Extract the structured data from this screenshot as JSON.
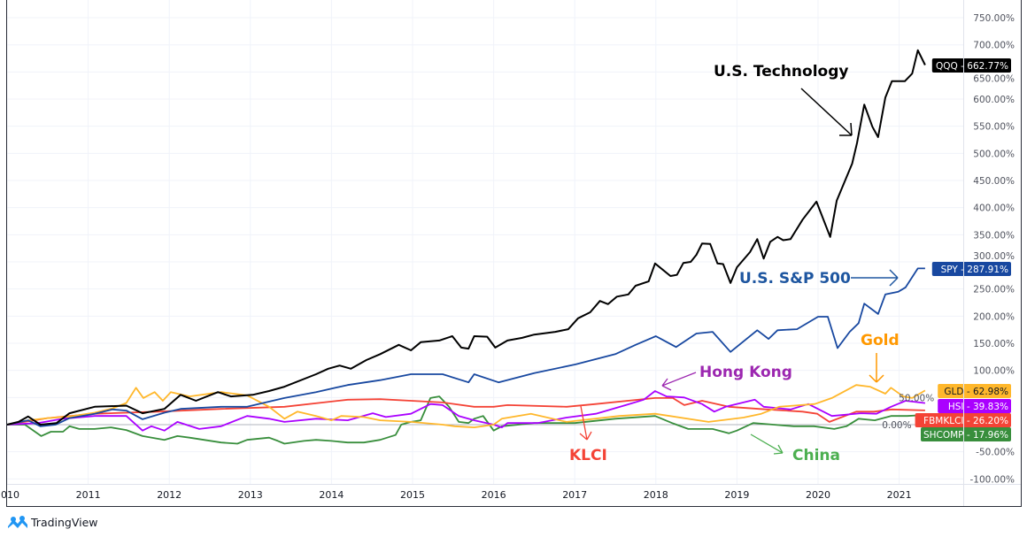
{
  "chart_data": {
    "type": "line",
    "title": "",
    "xlabel": "",
    "ylabel": "",
    "xlim": [
      2010.0,
      2021.8
    ],
    "ylim": [
      -110,
      780
    ],
    "y_ticks": [
      "750.00%",
      "700.00%",
      "650.00%",
      "600.00%",
      "550.00%",
      "500.00%",
      "450.00%",
      "400.00%",
      "350.00%",
      "300.00%",
      "250.00%",
      "200.00%",
      "150.00%",
      "100.00%",
      "50.00%",
      "0.00%",
      "-50.00%",
      "-100.00%"
    ],
    "y_tick_values": [
      750,
      700,
      650,
      600,
      550,
      500,
      450,
      400,
      350,
      300,
      250,
      200,
      150,
      100,
      50,
      0,
      -50,
      -100
    ],
    "x_ticks": [
      "2010",
      "2011",
      "2012",
      "2013",
      "2014",
      "2015",
      "2016",
      "2017",
      "2018",
      "2019",
      "2020",
      "2021"
    ],
    "x_tick_values": [
      2010,
      2011,
      2012,
      2013,
      2014,
      2015,
      2016,
      2017,
      2018,
      2019,
      2020,
      2021
    ],
    "grid": true,
    "baseline": 0,
    "series": [
      {
        "name": "QQQ",
        "tag": "QQQ - 662.77%",
        "color": "#000000",
        "tag_text_color": "#ffffff",
        "x": [
          2010.0,
          2010.14,
          2010.26,
          2010.41,
          2010.61,
          2010.77,
          2011.08,
          2011.47,
          2011.67,
          2011.94,
          2012.14,
          2012.33,
          2012.6,
          2012.76,
          2013.03,
          2013.23,
          2013.42,
          2013.81,
          2013.96,
          2014.1,
          2014.24,
          2014.43,
          2014.6,
          2014.83,
          2014.98,
          2015.1,
          2015.33,
          2015.49,
          2015.6,
          2015.69,
          2015.76,
          2015.92,
          2016.02,
          2016.17,
          2016.35,
          2016.5,
          2016.76,
          2016.92,
          2017.04,
          2017.19,
          2017.31,
          2017.41,
          2017.52,
          2017.66,
          2017.75,
          2017.91,
          2017.99,
          2018.18,
          2018.26,
          2018.34,
          2018.43,
          2018.5,
          2018.57,
          2018.67,
          2018.76,
          2018.83,
          2018.92,
          2019.0,
          2019.16,
          2019.25,
          2019.33,
          2019.41,
          2019.5,
          2019.57,
          2019.66,
          2019.81,
          2019.98,
          2020.15,
          2020.23,
          2020.42,
          2020.48,
          2020.57,
          2020.67,
          2020.74,
          2020.83,
          2020.91,
          2021.07,
          2021.16,
          2021.23,
          2021.32
        ],
        "y": [
          0,
          5,
          15,
          0,
          3,
          21,
          33,
          35,
          21,
          29,
          55,
          44,
          60,
          52,
          55,
          62,
          70,
          93,
          103,
          109,
          103,
          119,
          130,
          147,
          137,
          152,
          155,
          163,
          142,
          140,
          163,
          162,
          142,
          155,
          160,
          166,
          171,
          176,
          196,
          207,
          228,
          222,
          236,
          240,
          256,
          264,
          297,
          274,
          276,
          298,
          300,
          313,
          334,
          333,
          297,
          296,
          261,
          290,
          318,
          342,
          306,
          337,
          346,
          340,
          342,
          378,
          411,
          346,
          413,
          481,
          519,
          590,
          549,
          530,
          603,
          633,
          633,
          647,
          690,
          662.77
        ]
      },
      {
        "name": "SPY",
        "tag": "SPY - 287.91%",
        "color": "#1848a0",
        "tag_text_color": "#ffffff",
        "x": [
          2010.0,
          2010.26,
          2010.41,
          2010.6,
          2010.77,
          2011.08,
          2011.3,
          2011.47,
          2011.67,
          2011.94,
          2012.14,
          2012.64,
          2012.96,
          2013.42,
          2013.81,
          2014.2,
          2014.6,
          2014.98,
          2015.37,
          2015.69,
          2015.76,
          2016.06,
          2016.5,
          2017.01,
          2017.5,
          2017.75,
          2018.0,
          2018.25,
          2018.5,
          2018.7,
          2018.92,
          2019.25,
          2019.39,
          2019.5,
          2019.74,
          2020.0,
          2020.12,
          2020.24,
          2020.39,
          2020.5,
          2020.57,
          2020.74,
          2020.83,
          2020.99,
          2021.08,
          2021.23,
          2021.32
        ],
        "y": [
          0,
          8,
          -3,
          0,
          12,
          20,
          28,
          26,
          10,
          22,
          29,
          33,
          33,
          49,
          60,
          73,
          82,
          93,
          93,
          78,
          93,
          78,
          95,
          111,
          130,
          147,
          163,
          143,
          168,
          171,
          134,
          174,
          158,
          174,
          176,
          199,
          199,
          141,
          171,
          187,
          223,
          204,
          240,
          245,
          253,
          288,
          287.91
        ]
      },
      {
        "name": "GLD",
        "tag": "GLD - 62.98%",
        "color": "#ffb72b",
        "tag_text_color": "#131722",
        "x": [
          2010.0,
          2010.26,
          2010.5,
          2010.77,
          2011.08,
          2011.3,
          2011.47,
          2011.59,
          2011.68,
          2011.82,
          2011.92,
          2012.02,
          2012.25,
          2012.64,
          2012.96,
          2013.23,
          2013.42,
          2013.58,
          2013.81,
          2014.0,
          2014.12,
          2014.4,
          2014.6,
          2014.98,
          2015.37,
          2015.52,
          2015.76,
          2016.0,
          2016.1,
          2016.46,
          2016.9,
          2017.55,
          2017.99,
          2018.65,
          2019.08,
          2019.3,
          2019.52,
          2019.96,
          2020.17,
          2020.47,
          2020.64,
          2020.83,
          2020.9,
          2021.05,
          2021.16,
          2021.32
        ],
        "y": [
          0,
          8,
          12,
          15,
          22,
          30,
          40,
          68,
          49,
          60,
          44,
          60,
          52,
          60,
          54,
          33,
          11,
          24,
          16,
          8,
          16,
          14,
          8,
          5,
          0,
          -3,
          -5,
          0,
          11,
          20,
          5,
          16,
          20,
          5,
          13,
          20,
          33,
          38,
          49,
          73,
          70,
          57,
          68,
          52,
          49,
          62.98
        ]
      },
      {
        "name": "HSI",
        "tag": "HSI - 39.83%",
        "color": "#aa00ff",
        "tag_text_color": "#ffffff",
        "x": [
          2010.0,
          2010.38,
          2010.69,
          2011.08,
          2011.47,
          2011.67,
          2011.78,
          2011.94,
          2012.1,
          2012.37,
          2012.64,
          2012.96,
          2013.23,
          2013.42,
          2013.81,
          2014.2,
          2014.51,
          2014.67,
          2014.98,
          2015.22,
          2015.37,
          2015.57,
          2015.76,
          2016.0,
          2016.1,
          2016.17,
          2016.54,
          2016.9,
          2017.26,
          2017.63,
          2017.85,
          2017.99,
          2018.13,
          2018.35,
          2018.57,
          2018.72,
          2018.86,
          2019.08,
          2019.22,
          2019.33,
          2019.66,
          2019.88,
          2020.17,
          2020.53,
          2020.72,
          2020.9,
          2021.08,
          2021.32
        ],
        "y": [
          0,
          3,
          11,
          16,
          16,
          -11,
          -3,
          -11,
          5,
          -8,
          -3,
          16,
          11,
          5,
          11,
          8,
          21,
          14,
          20,
          38,
          36,
          16,
          8,
          0,
          -5,
          3,
          3,
          13,
          20,
          36,
          46,
          62,
          52,
          50,
          38,
          24,
          33,
          41,
          46,
          33,
          28,
          38,
          16,
          21,
          20,
          33,
          44,
          39.83
        ]
      },
      {
        "name": "FBMKLCI",
        "tag": "FBMKLCI - 26.20%",
        "color": "#f44336",
        "tag_text_color": "#ffffff",
        "x": [
          2010.0,
          2010.5,
          2011.08,
          2011.86,
          2012.64,
          2013.42,
          2014.2,
          2014.6,
          2014.98,
          2015.37,
          2015.76,
          2016.0,
          2016.17,
          2016.9,
          2017.26,
          2017.99,
          2018.21,
          2018.35,
          2018.57,
          2018.9,
          2019.27,
          2019.81,
          2019.99,
          2020.14,
          2020.47,
          2020.69,
          2020.91,
          2021.32
        ],
        "y": [
          0,
          12,
          20,
          24,
          29,
          33,
          46,
          47,
          44,
          41,
          33,
          33,
          36,
          33,
          38,
          49,
          49,
          36,
          44,
          33,
          29,
          24,
          20,
          5,
          24,
          24,
          28,
          26.2
        ]
      },
      {
        "name": "SHCOMP",
        "tag": "SHCOMP - 17.96%",
        "color": "#388e3c",
        "tag_text_color": "#ffffff",
        "x": [
          2010.0,
          2010.22,
          2010.42,
          2010.54,
          2010.69,
          2010.77,
          2010.89,
          2011.08,
          2011.28,
          2011.47,
          2011.67,
          2011.94,
          2012.1,
          2012.25,
          2012.64,
          2012.84,
          2012.96,
          2013.23,
          2013.34,
          2013.42,
          2013.66,
          2013.81,
          2014.0,
          2014.2,
          2014.4,
          2014.6,
          2014.79,
          2014.86,
          2014.98,
          2015.1,
          2015.22,
          2015.33,
          2015.45,
          2015.57,
          2015.69,
          2015.76,
          2015.87,
          2016.0,
          2016.1,
          2016.5,
          2017.0,
          2017.5,
          2017.99,
          2018.2,
          2018.4,
          2018.7,
          2018.9,
          2019.0,
          2019.2,
          2019.45,
          2019.7,
          2019.95,
          2020.2,
          2020.35,
          2020.5,
          2020.7,
          2020.9,
          2021.1,
          2021.32
        ],
        "y": [
          0,
          0,
          -21,
          -13,
          -13,
          -3,
          -8,
          -8,
          -5,
          -10,
          -21,
          -28,
          -21,
          -24,
          -33,
          -35,
          -28,
          -24,
          -30,
          -35,
          -30,
          -28,
          -30,
          -33,
          -33,
          -28,
          -19,
          0,
          5,
          8,
          49,
          52,
          33,
          5,
          3,
          11,
          16,
          -11,
          -3,
          3,
          3,
          11,
          16,
          3,
          -8,
          -8,
          -16,
          -11,
          3,
          0,
          -3,
          -3,
          -8,
          -3,
          11,
          8,
          16,
          16,
          17.96
        ]
      }
    ],
    "annotations": [
      {
        "text": "U.S. Technology",
        "color": "#000000"
      },
      {
        "text": "U.S. S&P 500",
        "color": "#1e56a0"
      },
      {
        "text": "Gold",
        "color": "#ff9800"
      },
      {
        "text": "Hong Kong",
        "color": "#9c27b0"
      },
      {
        "text": "KLCI",
        "color": "#f44336"
      },
      {
        "text": "China",
        "color": "#4caf50"
      }
    ]
  },
  "branding": {
    "logo_text": "TradingView",
    "logo_color": "#2196f3"
  }
}
